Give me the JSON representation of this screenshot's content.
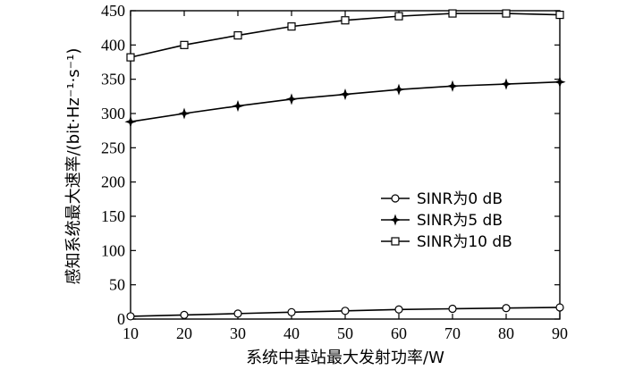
{
  "chart_data": {
    "type": "line",
    "xlabel": "系统中基站最大发射功率/W",
    "ylabel": "感知系统最大速率/(bit·Hz⁻¹·s⁻¹)",
    "xlim": [
      10,
      90
    ],
    "ylim": [
      0,
      450
    ],
    "x_ticks": [
      "10",
      "20",
      "30",
      "40",
      "50",
      "60",
      "70",
      "80",
      "90"
    ],
    "y_ticks": [
      "0",
      "50",
      "100",
      "150",
      "200",
      "250",
      "300",
      "350",
      "400",
      "450"
    ],
    "x": [
      10,
      20,
      30,
      40,
      50,
      60,
      70,
      80,
      90
    ],
    "grid": false,
    "legend_position": "right-middle",
    "series": [
      {
        "name": "SINR为0 dB",
        "marker": "circle",
        "values": [
          4,
          6,
          8,
          10,
          12,
          14,
          15,
          16,
          17
        ]
      },
      {
        "name": "SINR为5 dB",
        "marker": "star",
        "values": [
          288,
          300,
          311,
          321,
          328,
          335,
          340,
          343,
          346
        ]
      },
      {
        "name": "SINR为10 dB",
        "marker": "square",
        "values": [
          382,
          400,
          414,
          427,
          436,
          442,
          446,
          446,
          444
        ]
      }
    ]
  }
}
